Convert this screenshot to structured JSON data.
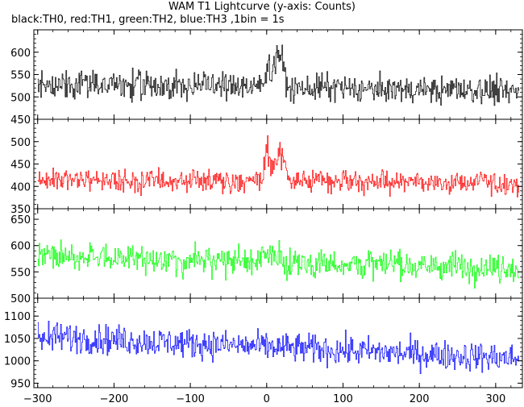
{
  "chart_data": {
    "type": "line",
    "title": "WAM T1 Lightcurve (y-axis: Counts)",
    "subtitle": "black:TH0, red:TH1, green:TH2, blue:TH3 ,1bin = 1s",
    "x_range": [
      -305,
      335
    ],
    "x_ticks": [
      -300,
      -200,
      -100,
      0,
      100,
      200,
      300
    ],
    "x_tick_labels": [
      "−300",
      "−200",
      "−100",
      "0",
      "100",
      "200",
      "300"
    ],
    "bin_seconds": 1,
    "panels": [
      {
        "name": "TH0",
        "color": "#000000",
        "ylim": [
          450,
          650
        ],
        "y_ticks": [
          450,
          500,
          550,
          600
        ],
        "baseline": 530,
        "noise": 28,
        "trend": -18,
        "peaks": [
          {
            "x": 0,
            "amp": 55,
            "width": 3
          },
          {
            "x": 15,
            "amp": 80,
            "width": 6
          }
        ]
      },
      {
        "name": "TH1",
        "color": "#ff0000",
        "ylim": [
          350,
          550
        ],
        "y_ticks": [
          350,
          400,
          450,
          500
        ],
        "baseline": 415,
        "noise": 22,
        "trend": -8,
        "peaks": [
          {
            "x": 0,
            "amp": 75,
            "width": 3
          },
          {
            "x": 15,
            "amp": 75,
            "width": 6
          }
        ]
      },
      {
        "name": "TH2",
        "color": "#00ff00",
        "ylim": [
          500,
          670
        ],
        "y_ticks": [
          500,
          550,
          600,
          650
        ],
        "baseline": 580,
        "noise": 25,
        "trend": -22,
        "peaks": [
          {
            "x": 0,
            "amp": 15,
            "width": 4
          },
          {
            "x": 15,
            "amp": 15,
            "width": 5
          }
        ]
      },
      {
        "name": "TH3",
        "color": "#0000ff",
        "ylim": [
          940,
          1140
        ],
        "y_ticks": [
          950,
          1000,
          1050,
          1100
        ],
        "baseline": 1055,
        "noise": 30,
        "trend": -50,
        "peaks": []
      }
    ]
  }
}
